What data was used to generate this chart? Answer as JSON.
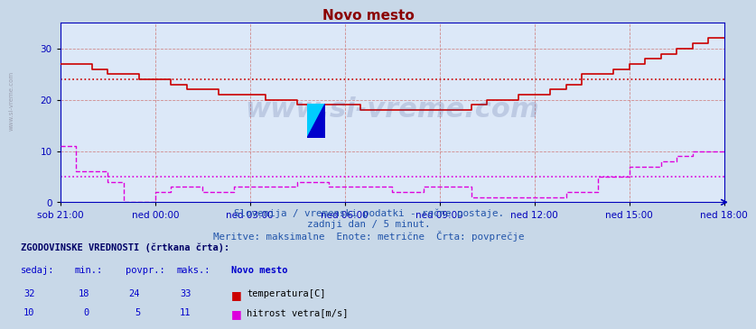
{
  "title": "Novo mesto",
  "title_color": "#8b0000",
  "bg_color": "#c8d8e8",
  "plot_bg_color": "#dce8f8",
  "grid_color": "#d08080",
  "axis_color": "#0000bb",
  "tick_color": "#0000bb",
  "ylim": [
    0,
    35
  ],
  "yticks": [
    0,
    10,
    20,
    30
  ],
  "x_labels": [
    "sob 21:00",
    "ned 00:00",
    "ned 03:00",
    "ned 06:00",
    "ned 09:00",
    "ned 12:00",
    "ned 15:00",
    "ned 18:00"
  ],
  "x_positions": [
    0,
    3,
    6,
    9,
    12,
    15,
    18,
    21
  ],
  "temp_color": "#cc0000",
  "wind_color": "#dd00dd",
  "avg_temp": 24,
  "avg_wind": 5,
  "watermark": "www.si-vreme.com",
  "sub_line1": "Slovenija / vremenski podatki - ročne postaje.",
  "sub_line2": "zadnji dan / 5 minut.",
  "sub_line3": "Meritve: maksimalne  Enote: metrične  Črta: povprečje",
  "legend_title": "ZGODOVINSKE VREDNOSTI (črtkana črta):",
  "legend_headers": [
    "sedaj:",
    "min.:",
    "povpr.:",
    "maks.:",
    "Novo mesto"
  ],
  "legend_row1": [
    "32",
    "18",
    "24",
    "33",
    "temperatura[C]"
  ],
  "legend_row2": [
    "10",
    "0",
    "5",
    "11",
    "hitrost vetra[m/s]"
  ],
  "temp_x": [
    0.0,
    0.5,
    1.0,
    1.5,
    2.0,
    2.5,
    3.0,
    3.5,
    4.0,
    4.5,
    5.0,
    5.5,
    6.0,
    6.5,
    7.0,
    7.5,
    8.0,
    8.5,
    9.0,
    9.5,
    10.0,
    10.5,
    11.0,
    11.5,
    12.0,
    12.5,
    13.0,
    13.5,
    14.0,
    14.5,
    15.0,
    15.5,
    16.0,
    16.5,
    17.0,
    17.5,
    18.0,
    18.5,
    19.0,
    19.5,
    20.0,
    20.5,
    21.0
  ],
  "temp_y": [
    27,
    27,
    26,
    25,
    25,
    24,
    24,
    23,
    22,
    22,
    21,
    21,
    21,
    20,
    20,
    19,
    19,
    19,
    19,
    18,
    18,
    18,
    18,
    18,
    18,
    18,
    19,
    20,
    20,
    21,
    21,
    22,
    23,
    25,
    25,
    26,
    27,
    28,
    29,
    30,
    31,
    32,
    32
  ],
  "wind_x": [
    0.0,
    0.5,
    1.0,
    1.5,
    2.0,
    2.5,
    3.0,
    3.5,
    4.0,
    4.5,
    5.0,
    5.5,
    6.0,
    6.5,
    7.0,
    7.5,
    8.0,
    8.5,
    9.0,
    9.5,
    10.0,
    10.5,
    11.0,
    11.5,
    12.0,
    12.5,
    13.0,
    13.5,
    14.0,
    14.5,
    15.0,
    15.5,
    16.0,
    16.5,
    17.0,
    17.5,
    18.0,
    18.5,
    19.0,
    19.5,
    20.0,
    20.5,
    21.0
  ],
  "wind_y": [
    11,
    6,
    6,
    4,
    0,
    0,
    2,
    3,
    3,
    2,
    2,
    3,
    3,
    3,
    3,
    4,
    4,
    3,
    3,
    3,
    3,
    2,
    2,
    3,
    3,
    3,
    1,
    1,
    1,
    1,
    1,
    1,
    2,
    2,
    5,
    5,
    7,
    7,
    8,
    9,
    10,
    10,
    10
  ],
  "left_text": "www.si-vreme.com"
}
